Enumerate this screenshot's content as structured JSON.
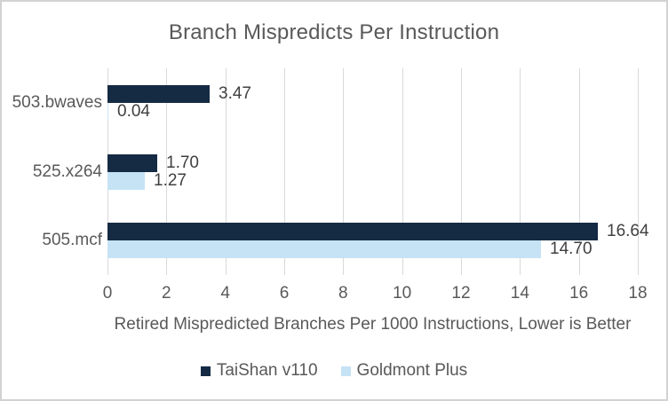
{
  "title": "Branch Mispredicts Per Instruction",
  "chart_data": {
    "type": "bar",
    "orientation": "horizontal",
    "title": "Branch Mispredicts Per Instruction",
    "categories": [
      "503.bwaves",
      "525.x264",
      "505.mcf"
    ],
    "series": [
      {
        "name": "TaiShan v110",
        "color": "#152a43",
        "values": [
          3.47,
          1.7,
          16.64
        ]
      },
      {
        "name": "Goldmont Plus",
        "color": "#c5e3f5",
        "values": [
          0.04,
          1.27,
          14.7
        ]
      }
    ],
    "value_label_decimals": 2,
    "xlabel": "Retired Mispredicted Branches Per 1000 Instructions, Lower is Better",
    "xlim": [
      0,
      18
    ],
    "xticks": [
      0,
      2,
      4,
      6,
      8,
      10,
      12,
      14,
      16,
      18
    ],
    "grid": true,
    "grid_color": "#d9d9d9",
    "legend_position": "bottom"
  }
}
